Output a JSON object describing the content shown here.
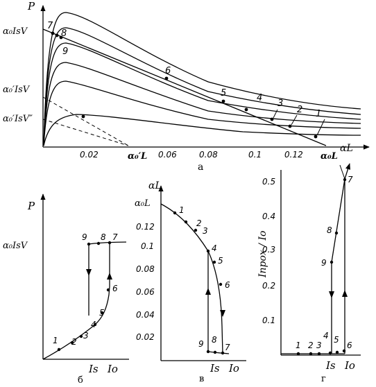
{
  "panel_a": {
    "caption": "а",
    "y_axis_label": "P",
    "x_axis_label": "αL",
    "y_labels": [
      "α₀IsV",
      "α₀′IsV",
      "α₀′IsV″"
    ],
    "x_ticks": [
      "0.02",
      "0.06",
      "0.08",
      "0.1",
      "0.12"
    ],
    "x_special_labels": [
      "α₀′L",
      "α₀L"
    ],
    "point_labels": [
      "1",
      "2",
      "3",
      "4",
      "5",
      "6",
      "7",
      "8",
      "9"
    ]
  },
  "panel_b": {
    "caption": "б",
    "y_axis_label": "P",
    "y_label": "α₀IsV",
    "x_labels": [
      "Is",
      "Io"
    ],
    "point_labels": [
      "1",
      "2",
      "3",
      "4",
      "5",
      "6",
      "7",
      "8",
      "9"
    ]
  },
  "panel_c": {
    "caption": "в",
    "y_axis_label": "αL",
    "y_top_label": "α₀L",
    "y_ticks": [
      "0.12",
      "0.1",
      "0.08",
      "0.06",
      "0.04",
      "0.02"
    ],
    "x_labels": [
      "Is",
      "Io"
    ],
    "point_labels": [
      "1",
      "2",
      "3",
      "4",
      "5",
      "6",
      "7",
      "8",
      "9"
    ]
  },
  "panel_d": {
    "caption": "г",
    "y_axis_label": "Iпрох / Io",
    "y_ticks": [
      "0.5",
      "0.4",
      "0.3",
      "0.2",
      "0.1"
    ],
    "x_labels": [
      "Is",
      "Io"
    ],
    "point_labels": [
      "1",
      "2",
      "3",
      "4",
      "5",
      "6",
      "7",
      "8",
      "9"
    ]
  }
}
